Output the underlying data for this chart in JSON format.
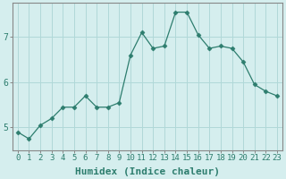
{
  "x": [
    0,
    1,
    2,
    3,
    4,
    5,
    6,
    7,
    8,
    9,
    10,
    11,
    12,
    13,
    14,
    15,
    16,
    17,
    18,
    19,
    20,
    21,
    22,
    23
  ],
  "y": [
    4.9,
    4.75,
    5.05,
    5.2,
    5.45,
    5.45,
    5.7,
    5.45,
    5.45,
    5.55,
    6.6,
    7.1,
    6.75,
    6.8,
    7.55,
    7.55,
    7.05,
    6.75,
    6.8,
    6.75,
    6.45,
    5.95,
    5.8,
    5.7
  ],
  "line_color": "#2d7d6e",
  "marker": "D",
  "marker_size": 2.5,
  "bg_color": "#d5eeee",
  "grid_color": "#b0d8d8",
  "xlabel": "Humidex (Indice chaleur)",
  "xlim": [
    -0.5,
    23.5
  ],
  "ylim": [
    4.5,
    7.75
  ],
  "yticks": [
    5,
    6,
    7
  ],
  "xticks": [
    0,
    1,
    2,
    3,
    4,
    5,
    6,
    7,
    8,
    9,
    10,
    11,
    12,
    13,
    14,
    15,
    16,
    17,
    18,
    19,
    20,
    21,
    22,
    23
  ],
  "tick_fontsize": 6.5,
  "xlabel_fontsize": 8,
  "axis_color": "#2d7d6e",
  "spine_color": "#888888"
}
